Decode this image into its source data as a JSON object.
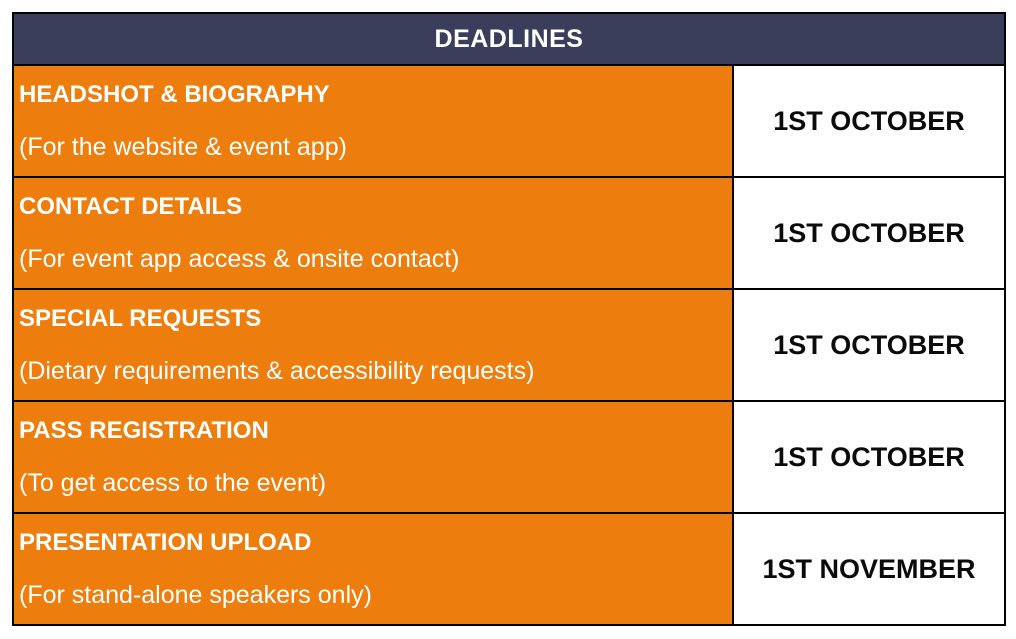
{
  "table": {
    "header": "DEADLINES",
    "rows": [
      {
        "title": "HEADSHOT & BIOGRAPHY",
        "subtitle": "(For the website & event app)",
        "deadline": "1ST OCTOBER"
      },
      {
        "title": "CONTACT DETAILS",
        "subtitle": "(For event app access & onsite contact)",
        "deadline": "1ST OCTOBER"
      },
      {
        "title": "SPECIAL REQUESTS",
        "subtitle": "(Dietary requirements & accessibility requests)",
        "deadline": "1ST OCTOBER"
      },
      {
        "title": "PASS REGISTRATION",
        "subtitle": "(To get access to the event)",
        "deadline": "1ST OCTOBER"
      },
      {
        "title": "PRESENTATION UPLOAD",
        "subtitle": "(For stand-alone speakers only)",
        "deadline": "1ST NOVEMBER"
      }
    ],
    "colors": {
      "header_bg": "#3A3E5B",
      "row_bg": "#ED7D0D",
      "deadline_bg": "#FFFFFF",
      "border": "#000000",
      "header_text": "#FFFFFF",
      "row_text": "#FFFFFF",
      "deadline_text": "#0B0B0B"
    }
  }
}
